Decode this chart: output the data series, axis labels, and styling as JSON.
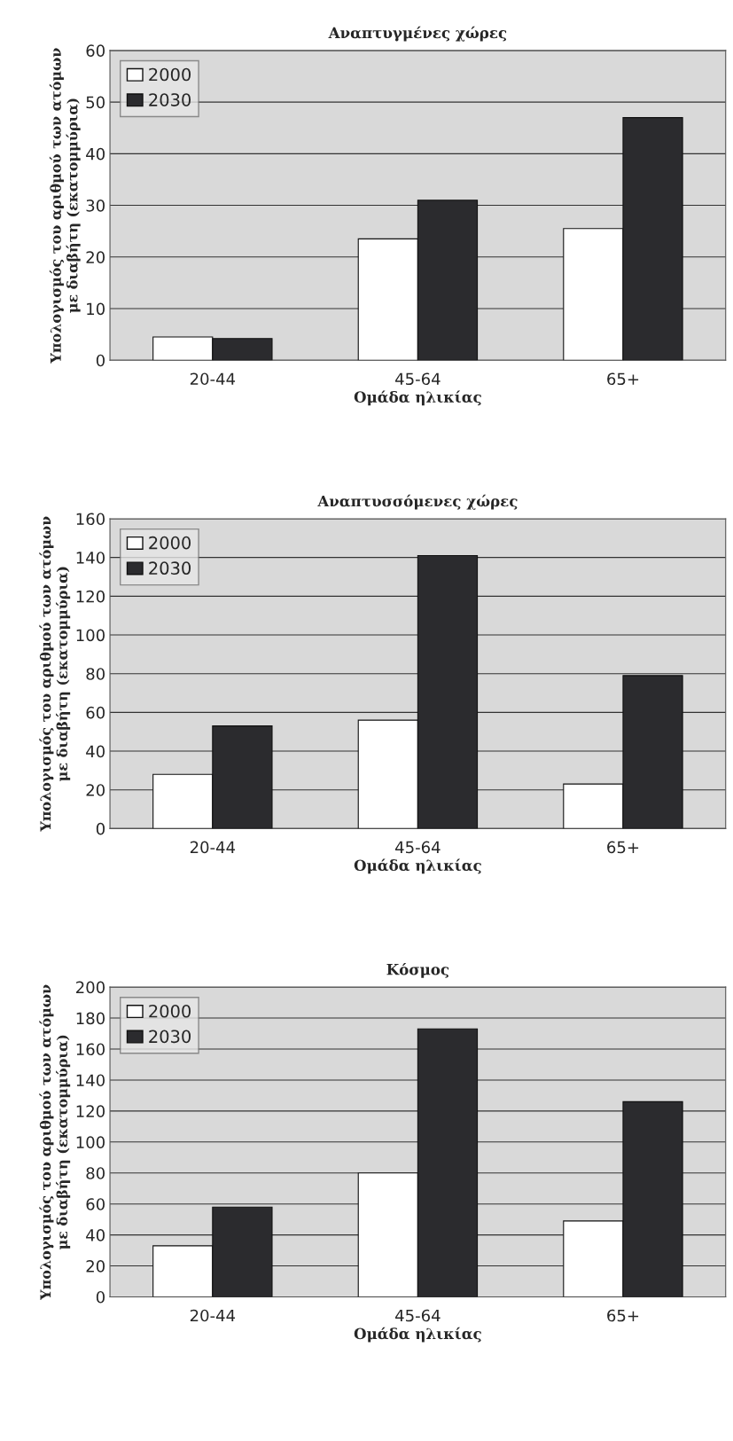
{
  "chart_data": [
    {
      "type": "bar",
      "title": "Αναπτυγμένες χώρες",
      "xlabel": "Ομάδα ηλικίας",
      "ylabel": "Υπολογισμός του αριθμού των ατόμων\nμε διαβήτη (εκατομμύρια)",
      "categories": [
        "20-44",
        "45-64",
        "65+"
      ],
      "series": [
        {
          "name": "2000",
          "color": "#ffffff",
          "values": [
            4.5,
            23.5,
            25.5
          ]
        },
        {
          "name": "2030",
          "color": "#2b2b2e",
          "values": [
            4.2,
            31,
            47
          ]
        }
      ],
      "ylim": [
        0,
        60
      ],
      "yticks": [
        0,
        10,
        20,
        30,
        40,
        50,
        60
      ],
      "grid": "y",
      "legend": "top left"
    },
    {
      "type": "bar",
      "title": "Αναπτυσσόμενες χώρες",
      "xlabel": "Ομάδα ηλικίας",
      "ylabel": "Υπολογισμός του αριθμού των ατόμων\nμε διαβήτη (εκατομμύρια)",
      "categories": [
        "20-44",
        "45-64",
        "65+"
      ],
      "series": [
        {
          "name": "2000",
          "color": "#ffffff",
          "values": [
            28,
            56,
            23
          ]
        },
        {
          "name": "2030",
          "color": "#2b2b2e",
          "values": [
            53,
            141,
            79
          ]
        }
      ],
      "ylim": [
        0,
        160
      ],
      "yticks": [
        0,
        20,
        40,
        60,
        80,
        100,
        120,
        140,
        160
      ],
      "grid": "y",
      "legend": "top left"
    },
    {
      "type": "bar",
      "title": "Κόσμος",
      "xlabel": "Ομάδα ηλικίας",
      "ylabel": "Υπολογισμός του αριθμού των ατόμων\nμε διαβήτη (εκατομμύρια)",
      "categories": [
        "20-44",
        "45-64",
        "65+"
      ],
      "series": [
        {
          "name": "2000",
          "color": "#ffffff",
          "values": [
            33,
            80,
            49
          ]
        },
        {
          "name": "2030",
          "color": "#2b2b2e",
          "values": [
            58,
            173,
            126
          ]
        }
      ],
      "ylim": [
        0,
        200
      ],
      "yticks": [
        0,
        20,
        40,
        60,
        80,
        100,
        120,
        140,
        160,
        180,
        200
      ],
      "grid": "y",
      "legend": "top left"
    }
  ]
}
